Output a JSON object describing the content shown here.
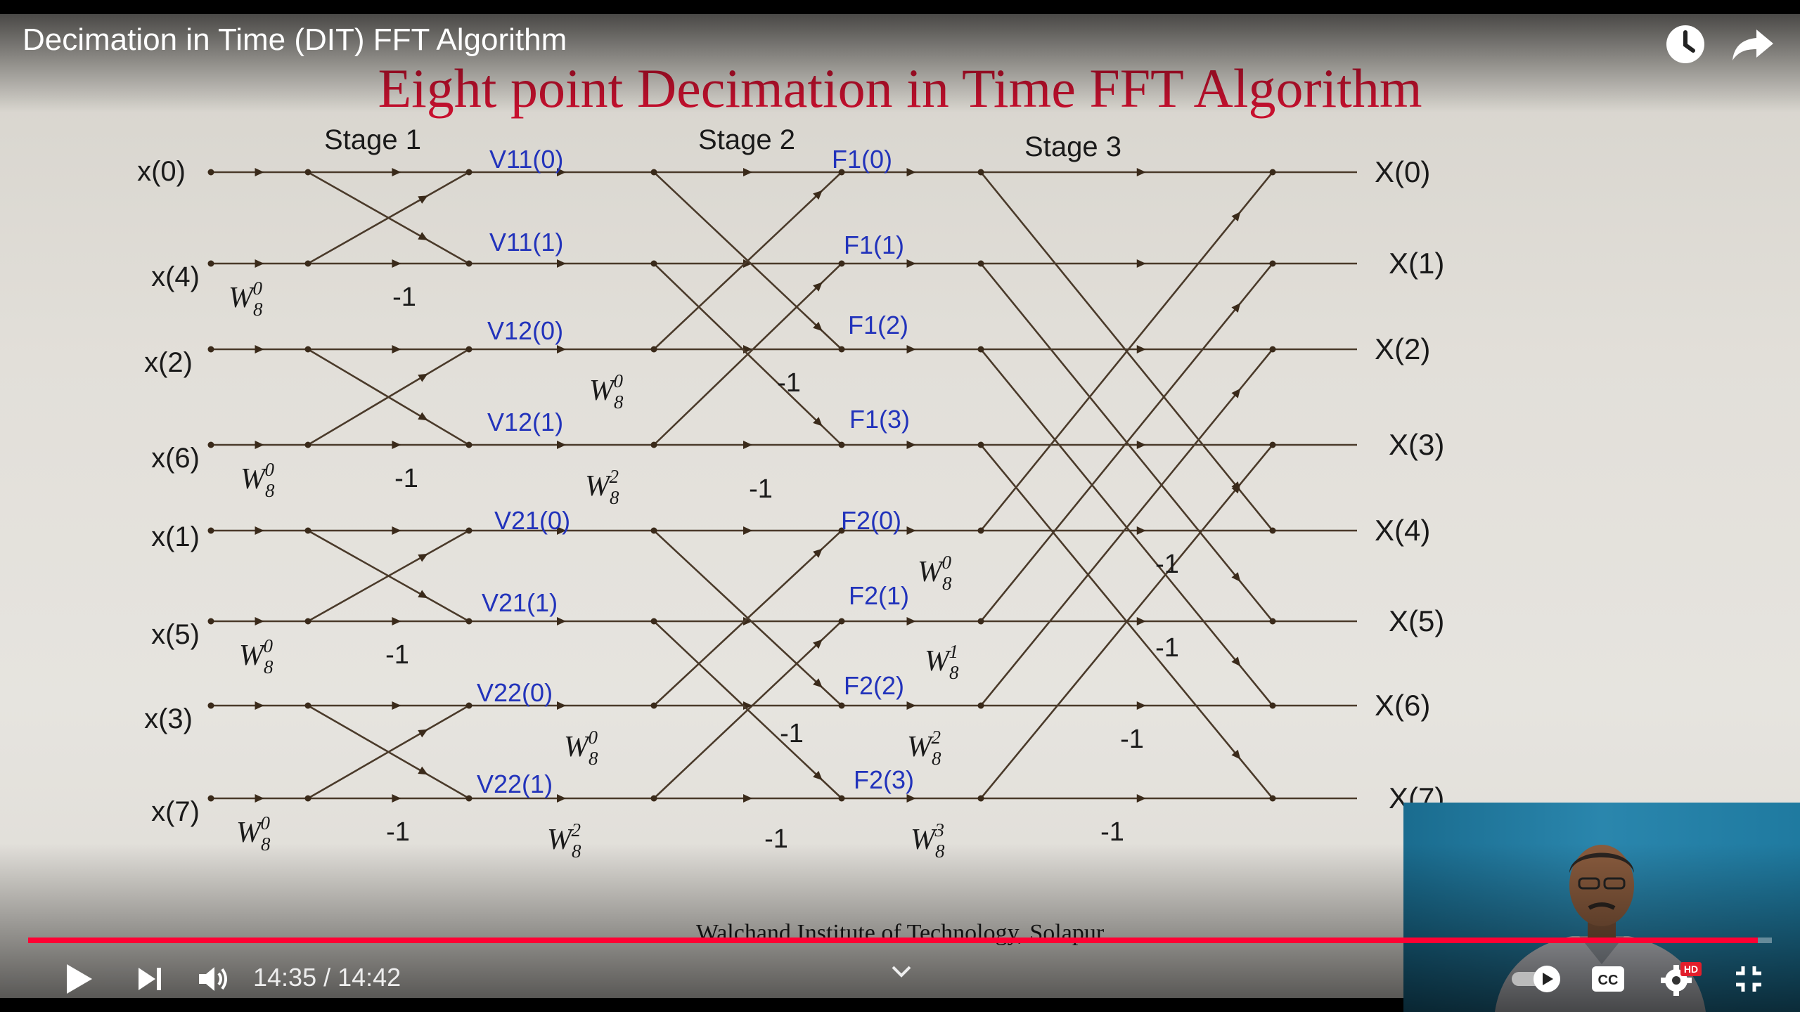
{
  "player": {
    "video_title": "Decimation in Time (DIT) FFT Algorithm",
    "time": {
      "current": "14:35",
      "duration": "14:42",
      "display": "14:35 / 14:42"
    },
    "progress_fraction": 0.992,
    "icons": [
      "clock-icon",
      "share-arrow-icon",
      "play-icon",
      "skip-next-icon",
      "volume-icon",
      "chevron-down-icon",
      "autoplay-toggle-icon",
      "captions-icon",
      "settings-gear-icon",
      "exit-fullscreen-icon"
    ],
    "hd_badge": "HD",
    "cc_label": "CC",
    "accent_color": "#ff0033"
  },
  "slide": {
    "title": "Eight point Decimation in Time FFT Algorithm",
    "institute": "Walchand Institute of Technology, Solapur",
    "stages": [
      "Stage 1",
      "Stage 2",
      "Stage 3"
    ],
    "inputs": [
      "x(0)",
      "x(4)",
      "x(2)",
      "x(6)",
      "x(1)",
      "x(5)",
      "x(3)",
      "x(7)"
    ],
    "outputs": [
      "X(0)",
      "X(1)",
      "X(2)",
      "X(3)",
      "X(4)",
      "X(5)",
      "X(6)",
      "X(7)"
    ],
    "stage1_nodes": [
      "V11(0)",
      "V11(1)",
      "V12(0)",
      "V12(1)",
      "V21(0)",
      "V21(1)",
      "V22(0)",
      "V22(1)"
    ],
    "stage2_nodes": [
      "F1(0)",
      "F1(1)",
      "F1(2)",
      "F1(3)",
      "F2(0)",
      "F2(1)",
      "F2(2)",
      "F2(3)"
    ],
    "minus_one": "-1",
    "twiddle": {
      "W": "W",
      "base": "8"
    },
    "twiddle_exponents": {
      "stage1": [
        "0",
        "0",
        "0",
        "0"
      ],
      "stage2": [
        "0",
        "2",
        "0",
        "2"
      ],
      "stage3": [
        "0",
        "1",
        "2",
        "3"
      ]
    },
    "title_color": "#c8102e",
    "node_color": "#2233bb"
  }
}
